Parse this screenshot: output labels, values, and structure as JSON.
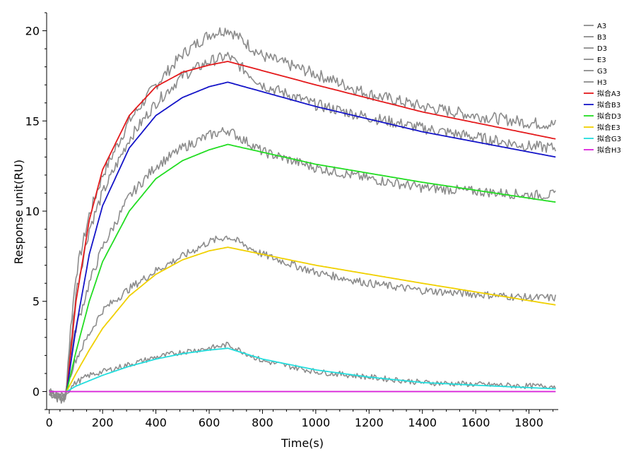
{
  "chart_data": {
    "type": "line",
    "xlabel": "Time(s)",
    "ylabel": "Response unit(RU)",
    "xlim": [
      -10,
      1910
    ],
    "ylim": [
      -1,
      21
    ],
    "xticks": [
      0,
      200,
      400,
      600,
      800,
      1000,
      1200,
      1400,
      1600,
      1800
    ],
    "yticks": [
      0,
      5,
      10,
      15,
      20
    ],
    "legend_position": "top-right",
    "grid": false,
    "series": [
      {
        "name": "A3",
        "color": "#8c8c8c",
        "style": "raw",
        "x": [
          0,
          40,
          60,
          80,
          100,
          150,
          200,
          300,
          400,
          500,
          600,
          670,
          800,
          1000,
          1200,
          1400,
          1600,
          1800,
          1900
        ],
        "y": [
          0,
          -0.4,
          -0.3,
          3.5,
          6.5,
          9.8,
          12.0,
          15.0,
          17.0,
          18.7,
          19.8,
          20.1,
          18.6,
          17.6,
          16.5,
          15.8,
          15.3,
          14.9,
          14.8
        ]
      },
      {
        "name": "B3",
        "color": "#8c8c8c",
        "style": "raw",
        "x": [
          0,
          40,
          60,
          80,
          100,
          150,
          200,
          300,
          400,
          500,
          600,
          670,
          800,
          1000,
          1200,
          1400,
          1600,
          1800,
          1900
        ],
        "y": [
          0,
          -0.4,
          -0.3,
          2.5,
          5.5,
          9.0,
          11.0,
          14.0,
          16.0,
          17.5,
          18.3,
          18.6,
          17.0,
          15.9,
          15.2,
          14.6,
          14.1,
          13.6,
          13.5
        ]
      },
      {
        "name": "D3",
        "color": "#8c8c8c",
        "style": "raw",
        "x": [
          0,
          40,
          60,
          80,
          100,
          150,
          200,
          300,
          400,
          500,
          600,
          670,
          800,
          1000,
          1200,
          1400,
          1600,
          1800,
          1900
        ],
        "y": [
          0,
          -0.4,
          -0.3,
          2.0,
          3.5,
          6.0,
          8.0,
          10.8,
          12.5,
          13.5,
          14.2,
          14.5,
          13.3,
          12.4,
          11.8,
          11.3,
          11.1,
          10.9,
          10.9
        ]
      },
      {
        "name": "E3",
        "color": "#8c8c8c",
        "style": "raw",
        "x": [
          0,
          40,
          60,
          80,
          100,
          150,
          200,
          300,
          400,
          500,
          600,
          670,
          800,
          1000,
          1200,
          1400,
          1600,
          1800,
          1900
        ],
        "y": [
          0,
          -0.3,
          -0.2,
          1.0,
          1.8,
          3.2,
          4.5,
          5.7,
          6.7,
          7.5,
          8.3,
          8.6,
          7.6,
          6.6,
          6.0,
          5.6,
          5.4,
          5.2,
          5.2
        ]
      },
      {
        "name": "G3",
        "color": "#8c8c8c",
        "style": "raw",
        "x": [
          0,
          40,
          60,
          80,
          100,
          150,
          200,
          300,
          400,
          500,
          600,
          670,
          800,
          1000,
          1200,
          1400,
          1600,
          1800,
          1900
        ],
        "y": [
          0,
          -0.3,
          -0.2,
          0.2,
          0.5,
          0.9,
          1.1,
          1.5,
          1.9,
          2.2,
          2.4,
          2.6,
          1.7,
          1.1,
          0.8,
          0.5,
          0.4,
          0.3,
          0.3
        ]
      },
      {
        "name": "H3",
        "color": "#8c8c8c",
        "style": "raw",
        "x": [
          0,
          1900
        ],
        "y": [
          0,
          0
        ]
      },
      {
        "name": "拟合A3",
        "color": "#e41a1c",
        "style": "fit",
        "x": [
          65,
          100,
          150,
          200,
          300,
          400,
          500,
          600,
          670,
          1000,
          1400,
          1900
        ],
        "y": [
          0,
          5.0,
          9.5,
          12.3,
          15.3,
          16.9,
          17.7,
          18.1,
          18.3,
          17.0,
          15.5,
          14.0
        ]
      },
      {
        "name": "拟合B3",
        "color": "#1414c8",
        "style": "fit",
        "x": [
          65,
          100,
          150,
          200,
          300,
          400,
          500,
          600,
          670,
          1000,
          1400,
          1900
        ],
        "y": [
          0,
          3.5,
          7.6,
          10.3,
          13.5,
          15.3,
          16.3,
          16.9,
          17.15,
          15.8,
          14.4,
          13.0
        ]
      },
      {
        "name": "拟合D3",
        "color": "#22dd22",
        "style": "fit",
        "x": [
          65,
          100,
          150,
          200,
          300,
          400,
          500,
          600,
          670,
          1000,
          1400,
          1900
        ],
        "y": [
          0,
          2.2,
          5.0,
          7.2,
          10.0,
          11.8,
          12.8,
          13.4,
          13.7,
          12.6,
          11.6,
          10.5
        ]
      },
      {
        "name": "拟合E3",
        "color": "#f0d000",
        "style": "fit",
        "x": [
          65,
          100,
          150,
          200,
          300,
          400,
          500,
          600,
          670,
          1000,
          1400,
          1900
        ],
        "y": [
          0,
          1.0,
          2.3,
          3.5,
          5.3,
          6.5,
          7.3,
          7.8,
          8.0,
          7.0,
          6.0,
          4.8
        ]
      },
      {
        "name": "拟合G3",
        "color": "#22dddd",
        "style": "fit",
        "x": [
          65,
          100,
          150,
          200,
          300,
          400,
          500,
          600,
          670,
          800,
          1000,
          1200,
          1400,
          1600,
          1900
        ],
        "y": [
          0,
          0.3,
          0.6,
          0.9,
          1.4,
          1.8,
          2.1,
          2.3,
          2.4,
          1.8,
          1.2,
          0.8,
          0.5,
          0.35,
          0.15
        ]
      },
      {
        "name": "拟合H3",
        "color": "#dd22dd",
        "style": "fit",
        "x": [
          0,
          1900
        ],
        "y": [
          0,
          0
        ]
      }
    ]
  }
}
